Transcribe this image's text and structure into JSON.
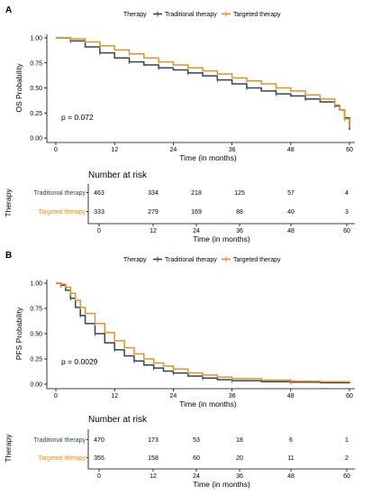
{
  "colors": {
    "traditional": "#2f4554",
    "targeted": "#e8912a"
  },
  "panels": [
    {
      "letter": "A",
      "legend": {
        "title": "Therapy",
        "items": [
          "Traditional therapy",
          "Targeted therapy"
        ]
      },
      "ylabel": "OS Probability",
      "xlabel": "Time (in months)",
      "pvalue": "p = 0.072",
      "yticks": [
        "0.00",
        "0.25",
        "0.50",
        "0.75",
        "1.00"
      ],
      "xticks": [
        "0",
        "12",
        "24",
        "36",
        "48",
        "60"
      ],
      "risk": {
        "title": "Number at risk",
        "axis_title": "Therapy",
        "xlabel": "Time (in months)",
        "rows": [
          {
            "label": "Traditional therapy",
            "values": [
              "463",
              "334",
              "218",
              "125",
              "57",
              "4"
            ]
          },
          {
            "label": "Targeted therapy",
            "values": [
              "333",
              "279",
              "169",
              "88",
              "40",
              "3"
            ]
          }
        ],
        "xticks": [
          "0",
          "12",
          "24",
          "36",
          "48",
          "60"
        ]
      }
    },
    {
      "letter": "B",
      "legend": {
        "title": "Therapy",
        "items": [
          "Traditional therapy",
          "Targeted therapy"
        ]
      },
      "ylabel": "PFS Probability",
      "xlabel": "Time (in months)",
      "pvalue": "p = 0.0029",
      "yticks": [
        "0.00",
        "0.25",
        "0.50",
        "0.75",
        "1.00"
      ],
      "xticks": [
        "0",
        "12",
        "24",
        "36",
        "48",
        "60"
      ],
      "risk": {
        "title": "Number at risk",
        "axis_title": "Therapy",
        "xlabel": "Time (in months)",
        "rows": [
          {
            "label": "Traditional therapy",
            "values": [
              "470",
              "173",
              "53",
              "18",
              "6",
              "1"
            ]
          },
          {
            "label": "Targeted therapy",
            "values": [
              "355",
              "158",
              "60",
              "20",
              "11",
              "2"
            ]
          }
        ],
        "xticks": [
          "0",
          "12",
          "24",
          "36",
          "48",
          "60"
        ]
      }
    }
  ],
  "chart_data": [
    {
      "type": "line",
      "ylim": [
        0,
        1
      ],
      "xlim": [
        0,
        60
      ],
      "series": [
        {
          "name": "Traditional therapy",
          "x": [
            0,
            3,
            6,
            9,
            12,
            15,
            18,
            21,
            24,
            27,
            30,
            33,
            36,
            39,
            42,
            45,
            48,
            51,
            54,
            57,
            58,
            59,
            60
          ],
          "y": [
            1.0,
            0.97,
            0.91,
            0.85,
            0.8,
            0.76,
            0.73,
            0.7,
            0.68,
            0.65,
            0.62,
            0.58,
            0.54,
            0.5,
            0.47,
            0.44,
            0.42,
            0.39,
            0.36,
            0.32,
            0.28,
            0.2,
            0.08
          ]
        },
        {
          "name": "Targeted therapy",
          "x": [
            0,
            3,
            6,
            9,
            12,
            15,
            18,
            21,
            24,
            27,
            30,
            33,
            36,
            39,
            42,
            45,
            48,
            51,
            54,
            57,
            58,
            59,
            60
          ],
          "y": [
            1.0,
            0.99,
            0.96,
            0.92,
            0.88,
            0.84,
            0.8,
            0.76,
            0.73,
            0.7,
            0.67,
            0.64,
            0.6,
            0.57,
            0.54,
            0.5,
            0.47,
            0.43,
            0.39,
            0.33,
            0.28,
            0.19,
            0.1
          ]
        }
      ]
    },
    {
      "type": "line",
      "ylim": [
        0,
        1
      ],
      "xlim": [
        0,
        60
      ],
      "series": [
        {
          "name": "Traditional therapy",
          "x": [
            0,
            1,
            2,
            3,
            4,
            5,
            6,
            8,
            10,
            12,
            14,
            16,
            18,
            20,
            22,
            24,
            27,
            30,
            33,
            36,
            42,
            48,
            54,
            60
          ],
          "y": [
            1.0,
            0.98,
            0.93,
            0.85,
            0.76,
            0.68,
            0.6,
            0.5,
            0.41,
            0.34,
            0.28,
            0.23,
            0.19,
            0.16,
            0.13,
            0.11,
            0.08,
            0.06,
            0.045,
            0.035,
            0.025,
            0.02,
            0.015,
            0.01
          ]
        },
        {
          "name": "Targeted therapy",
          "x": [
            0,
            1,
            2,
            3,
            4,
            5,
            6,
            8,
            10,
            12,
            14,
            16,
            18,
            20,
            22,
            24,
            27,
            30,
            33,
            36,
            42,
            48,
            54,
            60
          ],
          "y": [
            1.0,
            0.99,
            0.96,
            0.9,
            0.83,
            0.76,
            0.7,
            0.6,
            0.51,
            0.43,
            0.36,
            0.3,
            0.25,
            0.21,
            0.18,
            0.15,
            0.11,
            0.09,
            0.07,
            0.055,
            0.04,
            0.03,
            0.025,
            0.02
          ]
        }
      ]
    }
  ]
}
